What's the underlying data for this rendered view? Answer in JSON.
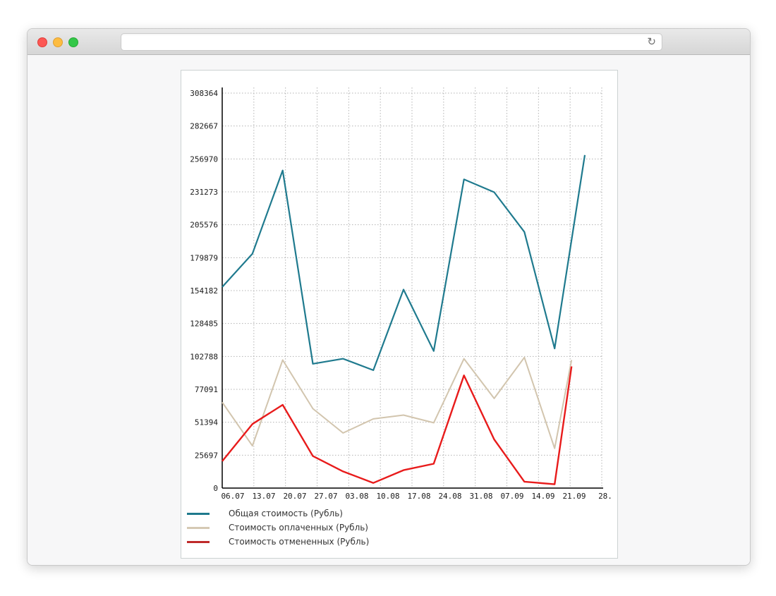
{
  "browser": {
    "window_controls": {
      "close": "close-button",
      "minimize": "minimize-button",
      "zoom": "zoom-button"
    },
    "address_bar": {
      "value": "",
      "placeholder": ""
    },
    "reload_icon_glyph": "↻"
  },
  "chart_data": {
    "type": "line",
    "title": "",
    "xlabel": "",
    "ylabel": "",
    "ylim": [
      0,
      308364
    ],
    "grid": true,
    "legend_position": "bottom-left",
    "categories": [
      "06.07",
      "13.07",
      "20.07",
      "27.07",
      "03.08",
      "10.08",
      "17.08",
      "24.08",
      "31.08",
      "07.09",
      "14.09",
      "21.09",
      "28."
    ],
    "y_ticks": [
      "308364",
      "282667",
      "256970",
      "231273",
      "205576",
      "179879",
      "154182",
      "128485",
      "102788",
      "77091",
      "51394",
      "25697",
      "0"
    ],
    "series": [
      {
        "id": "total",
        "name": "Общая стоимость (Рубль)",
        "color": "#1f7a8e",
        "legend_color": "#1e798c",
        "stroke_width": 2.2,
        "x_index": [
          0,
          1,
          2,
          3,
          4,
          5,
          6,
          7,
          8,
          9,
          10,
          11,
          12
        ],
        "values": [
          157000,
          183000,
          248000,
          97000,
          101000,
          92000,
          155000,
          107000,
          241000,
          231000,
          200000,
          109000,
          260000
        ]
      },
      {
        "id": "paid",
        "name": "Стоимость оплаченных (Рубль)",
        "color": "#d2c5ae",
        "legend_color": "#d5c9b4",
        "stroke_width": 2,
        "x_index": [
          0,
          1,
          2,
          3,
          4,
          5,
          6,
          7,
          8,
          9,
          10,
          11,
          11.56
        ],
        "values": [
          67000,
          33000,
          100000,
          62000,
          43000,
          54000,
          57000,
          51000,
          101000,
          70000,
          102000,
          31000,
          100000
        ]
      },
      {
        "id": "cancelled",
        "name": "Стоимость отмененных (Рубль)",
        "color": "#e81b1b",
        "legend_color": "#bf2a2a",
        "stroke_width": 2.4,
        "x_index": [
          0,
          1,
          2,
          3,
          4,
          5,
          6,
          7,
          8,
          9,
          10,
          11,
          11.56
        ],
        "values": [
          21000,
          50000,
          65000,
          25000,
          13000,
          4000,
          14000,
          19000,
          88000,
          38000,
          5000,
          3000,
          95000
        ]
      }
    ]
  }
}
